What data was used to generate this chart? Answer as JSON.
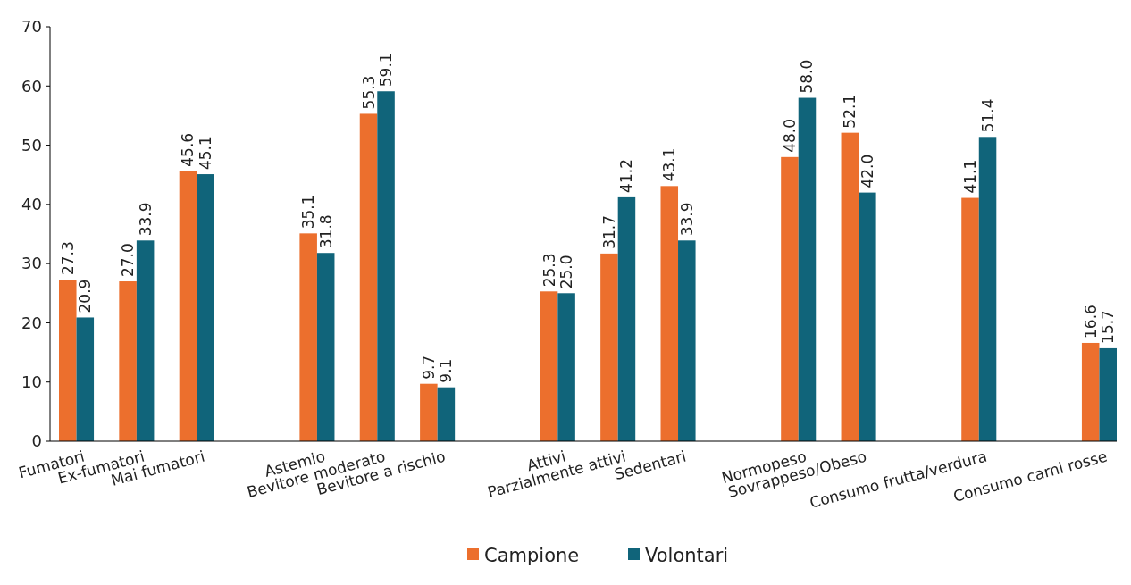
{
  "chart_data": {
    "type": "bar",
    "categories": [
      "Fumatori",
      "Ex-fumatori",
      "Mai fumatori",
      null,
      "Astemio",
      "Bevitore moderato",
      "Bevitore a rischio",
      null,
      "Attivi",
      "Parzialmente attivi",
      "Sedentari",
      null,
      "Normopeso",
      "Sovrappeso/Obeso",
      null,
      "Consumo frutta/verdura",
      null,
      "Consumo carni rosse"
    ],
    "series": [
      {
        "name": "Campione",
        "color": "#ec6f2d",
        "values": [
          27.3,
          27.0,
          45.6,
          null,
          35.1,
          55.3,
          9.7,
          null,
          25.3,
          31.7,
          43.1,
          null,
          48.0,
          52.1,
          null,
          41.1,
          null,
          16.6
        ],
        "value_labels": [
          "27.3",
          "27.0",
          "45.6",
          null,
          "35.1",
          "55.3",
          "9.7",
          null,
          "25.3",
          "31.7",
          "43.1",
          null,
          "48.0",
          "52.1",
          null,
          "41.1",
          null,
          "16.6"
        ]
      },
      {
        "name": "Volontari",
        "color": "#10647a",
        "values": [
          20.9,
          33.9,
          45.1,
          null,
          31.8,
          59.1,
          9.1,
          null,
          25.0,
          41.2,
          33.9,
          null,
          58.0,
          42.0,
          null,
          51.4,
          null,
          15.7
        ],
        "value_labels": [
          "20.9",
          "33.9",
          "45.1",
          null,
          "31.8",
          "59.1",
          "9.1",
          null,
          "25.0",
          "41.2",
          "33.9",
          null,
          "58.0",
          "42.0",
          null,
          "51.4",
          null,
          "15.7"
        ]
      }
    ],
    "ylim": [
      0,
      70
    ],
    "yticks": [
      0,
      10,
      20,
      30,
      40,
      50,
      60,
      70
    ],
    "legend": "bottom",
    "grid": false
  }
}
